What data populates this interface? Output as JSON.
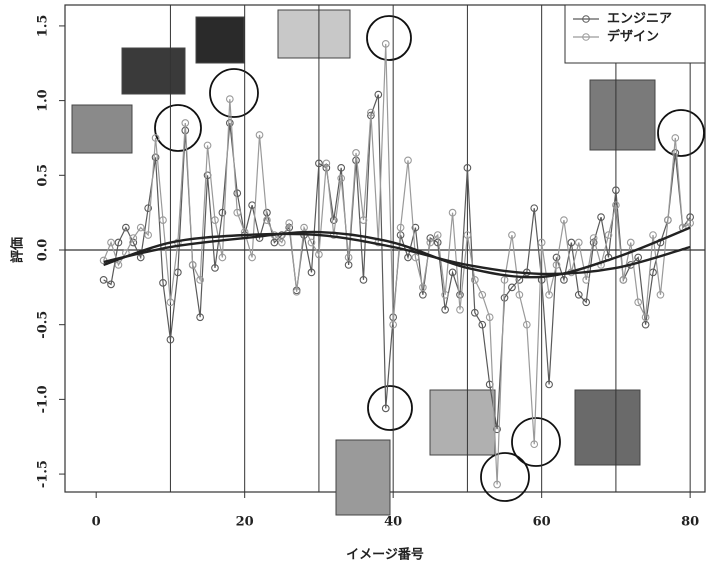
{
  "chart_data": {
    "type": "line",
    "xlabel": "イメージ番号",
    "ylabel": "評価",
    "x": [
      1,
      2,
      3,
      4,
      5,
      6,
      7,
      8,
      9,
      10,
      11,
      12,
      13,
      14,
      15,
      16,
      17,
      18,
      19,
      20,
      21,
      22,
      23,
      24,
      25,
      26,
      27,
      28,
      29,
      30,
      31,
      32,
      33,
      34,
      35,
      36,
      37,
      38,
      39,
      40,
      41,
      42,
      43,
      44,
      45,
      46,
      47,
      48,
      49,
      50,
      51,
      52,
      53,
      54,
      55,
      56,
      57,
      58,
      59,
      60,
      61,
      62,
      63,
      64,
      65,
      66,
      67,
      68,
      69,
      70,
      71,
      72,
      73,
      74,
      75,
      76,
      77,
      78,
      79,
      80
    ],
    "series": [
      {
        "name": "エンジニア",
        "color": "#5a5a5a",
        "values": [
          -0.2,
          -0.23,
          0.05,
          0.15,
          0.05,
          -0.05,
          0.28,
          0.62,
          -0.22,
          -0.6,
          -0.15,
          0.8,
          -0.1,
          -0.45,
          0.5,
          -0.12,
          0.25,
          0.85,
          0.38,
          0.1,
          0.3,
          0.08,
          0.25,
          0.05,
          0.1,
          0.15,
          -0.27,
          0.1,
          -0.15,
          0.58,
          0.55,
          0.2,
          0.55,
          -0.1,
          0.6,
          -0.2,
          0.9,
          1.04,
          -1.06,
          -0.45,
          0.1,
          -0.05,
          0.15,
          -0.3,
          0.08,
          0.05,
          -0.4,
          -0.15,
          -0.3,
          0.55,
          -0.42,
          -0.5,
          -0.9,
          -1.2,
          -0.32,
          -0.25,
          -0.2,
          -0.15,
          0.28,
          -0.2,
          -0.9,
          -0.05,
          -0.2,
          0.05,
          -0.3,
          -0.35,
          0.05,
          0.22,
          -0.05,
          0.4,
          -0.2,
          -0.1,
          -0.05,
          -0.5,
          -0.15,
          0.05,
          0.2,
          0.65,
          0.15,
          0.22
        ],
        "trend": [
          -0.08,
          0.02,
          0.08,
          0.12,
          0.05,
          -0.12,
          -0.18,
          -0.05,
          0.15
        ]
      },
      {
        "name": "デザイン",
        "color": "#9a9a9a",
        "values": [
          -0.07,
          0.05,
          -0.1,
          -0.02,
          0.08,
          0.15,
          0.1,
          0.75,
          0.2,
          -0.35,
          0.05,
          0.85,
          -0.1,
          -0.2,
          0.7,
          0.2,
          -0.05,
          1.01,
          0.25,
          0.12,
          -0.05,
          0.77,
          0.2,
          0.1,
          0.05,
          0.18,
          -0.28,
          0.15,
          0.05,
          -0.03,
          0.58,
          0.1,
          0.48,
          -0.05,
          0.65,
          0.2,
          0.92,
          0.05,
          1.38,
          -0.5,
          0.15,
          0.6,
          -0.05,
          -0.25,
          0.05,
          0.1,
          -0.3,
          0.25,
          -0.4,
          0.1,
          -0.2,
          -0.3,
          -0.45,
          -1.57,
          -0.2,
          0.1,
          -0.3,
          -0.5,
          -1.3,
          0.05,
          -0.3,
          -0.1,
          0.2,
          -0.15,
          0.05,
          -0.2,
          0.08,
          -0.1,
          0.1,
          0.3,
          -0.2,
          0.05,
          -0.35,
          -0.45,
          0.1,
          -0.3,
          0.2,
          0.75,
          0.15,
          0.18
        ],
        "trend": [
          -0.1,
          0.05,
          0.1,
          0.1,
          0.02,
          -0.1,
          -0.16,
          -0.12,
          0.02
        ]
      }
    ],
    "trend_x": [
      1,
      10,
      20,
      30,
      40,
      50,
      60,
      70,
      80
    ],
    "trend_color": "#222222",
    "xlim": [
      -4.2,
      82
    ],
    "ylim": [
      -1.62,
      1.64
    ],
    "xticks": [
      0,
      20,
      40,
      60,
      80
    ],
    "yticks": [
      -1.5,
      {
        "value": -1,
        "label": "-1.0"
      },
      -0.5,
      {
        "value": 0,
        "label": "0.0"
      },
      0.5,
      {
        "value": 1,
        "label": "1.0"
      },
      1.5
    ],
    "vlines": [
      10,
      20,
      30,
      40,
      50,
      60,
      70,
      80
    ],
    "hline": 0,
    "legend": "top-right"
  }
}
